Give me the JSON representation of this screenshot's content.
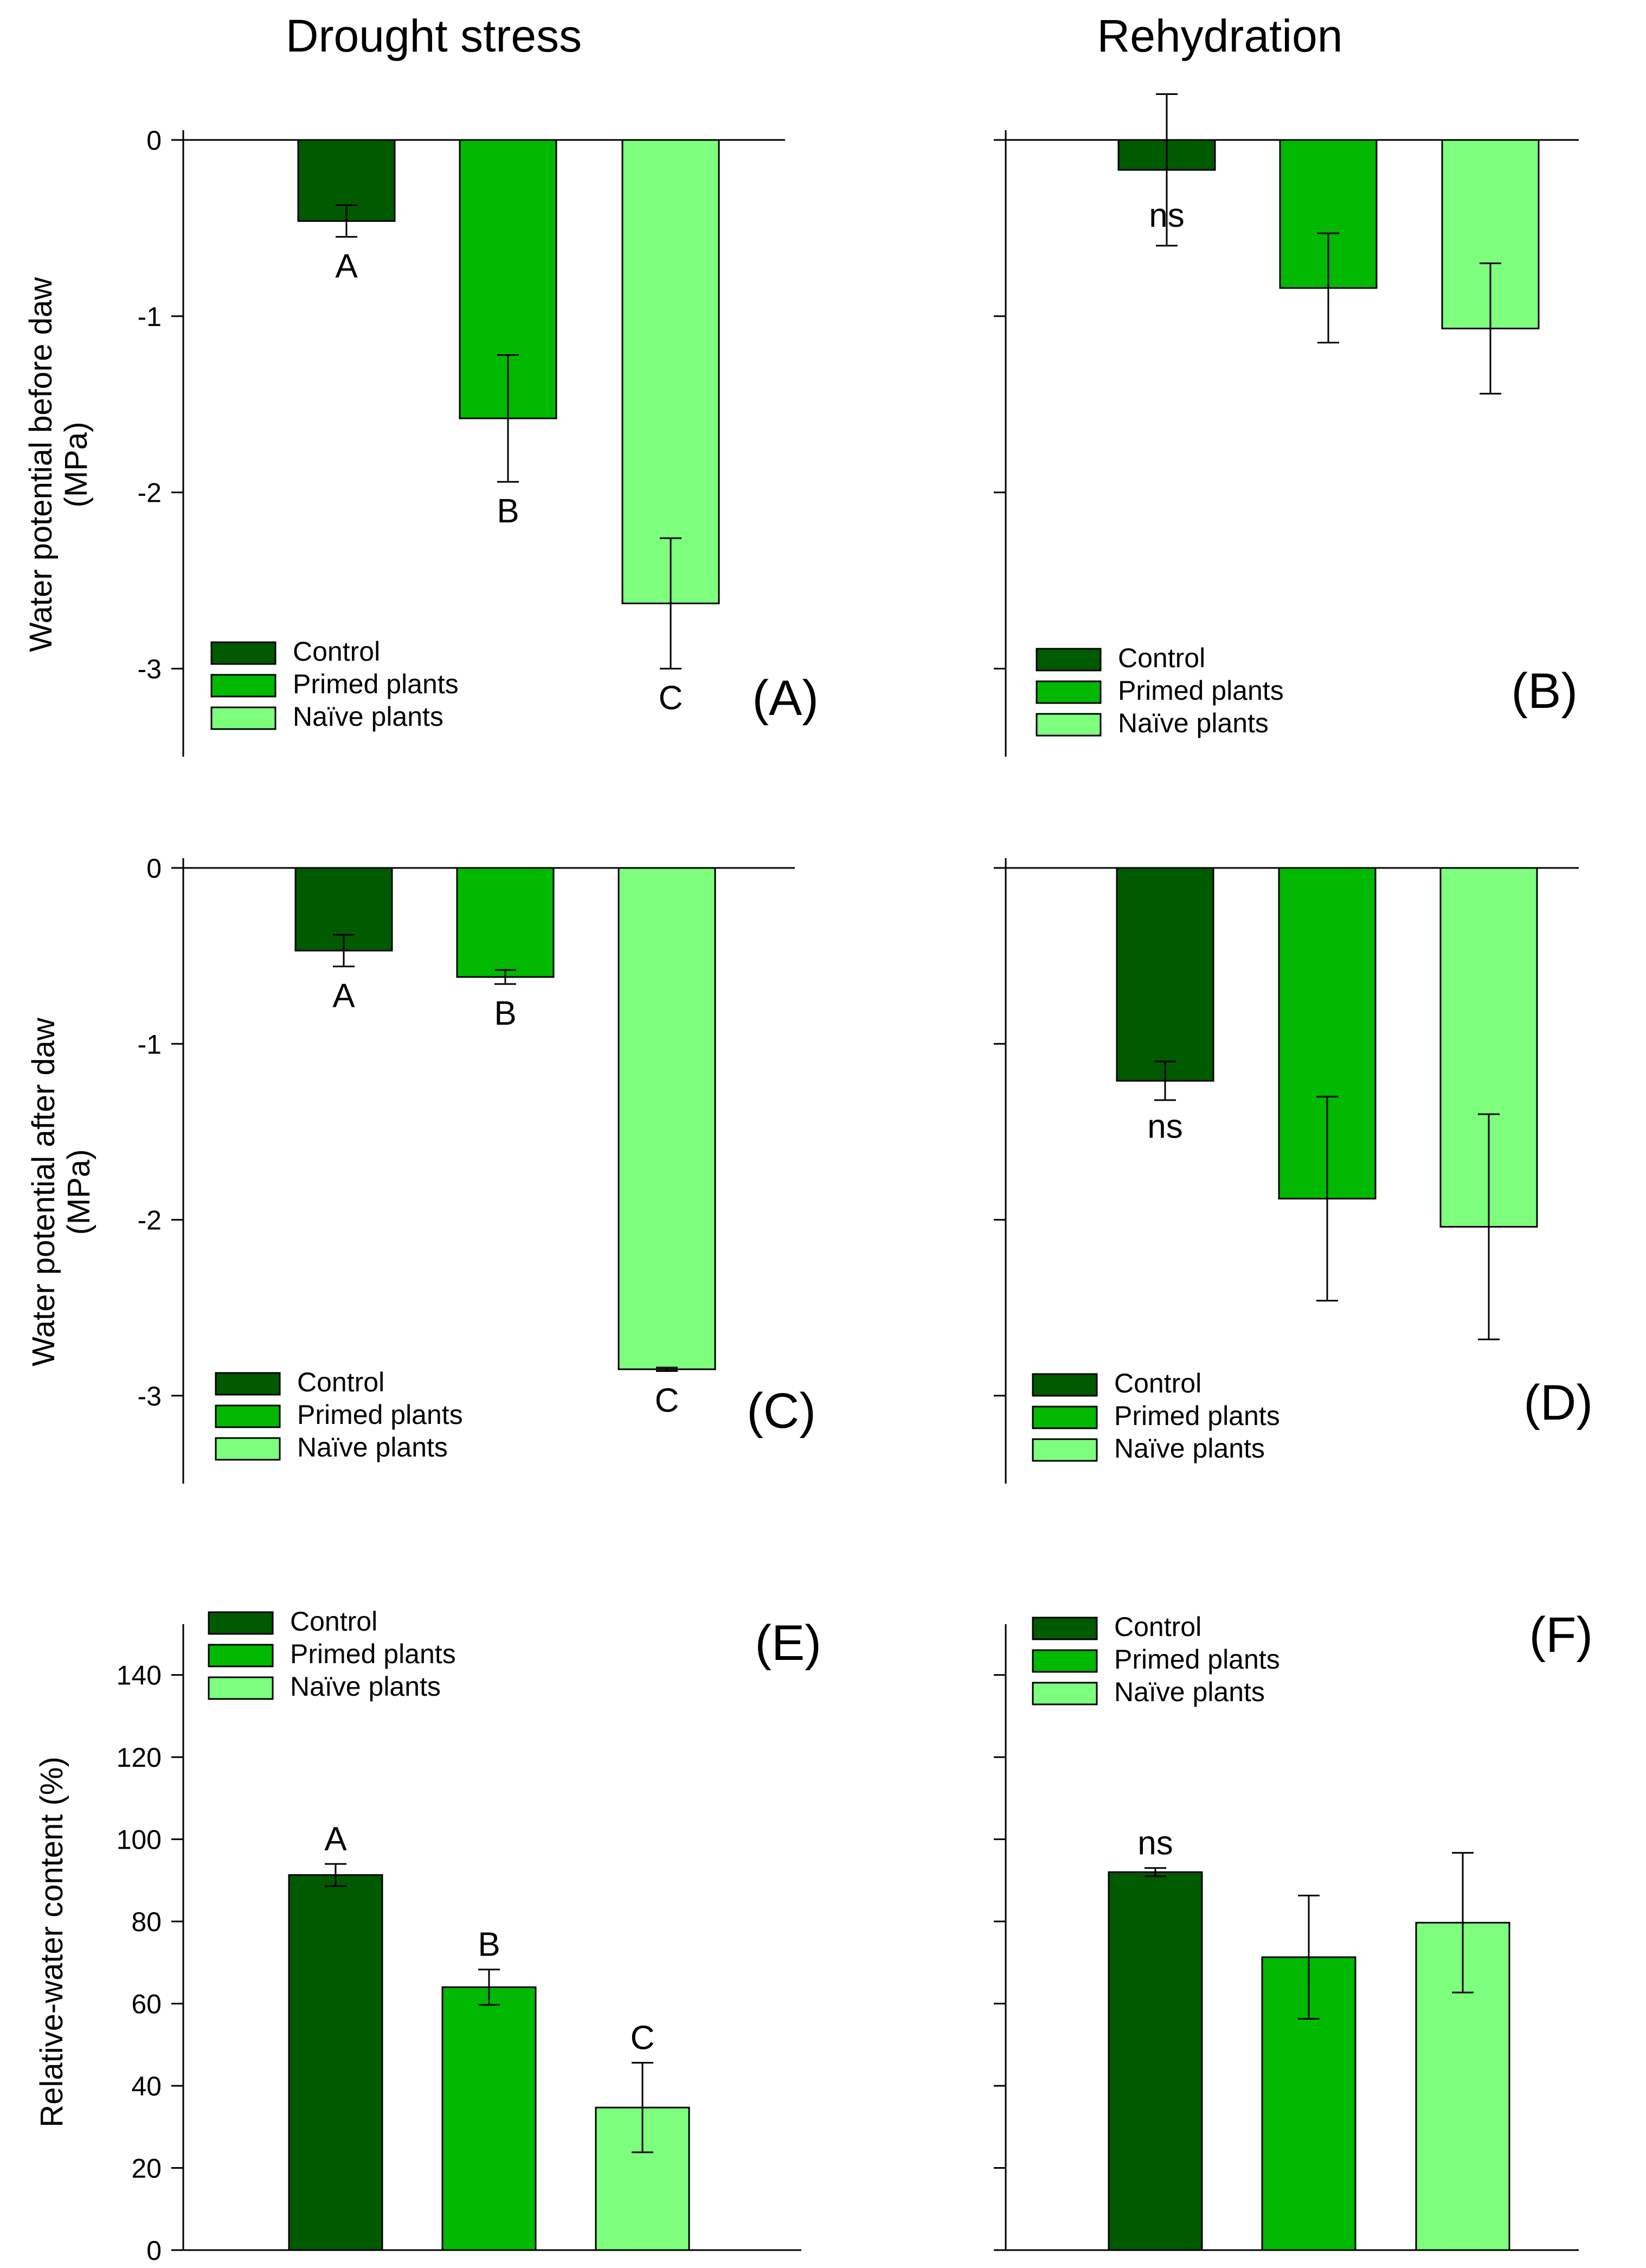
{
  "columns": [
    "Drought stress",
    "Rehydration"
  ],
  "colors": {
    "control": "#005a00",
    "primed": "#00b900",
    "naive": "#7dff7d",
    "axis": "#000000"
  },
  "chart_data": [
    {
      "id": "A",
      "panel_label": "(A)",
      "type": "bar",
      "categories": [
        "Control",
        "Primed plants",
        "Naïve plants"
      ],
      "values": [
        -0.46,
        -1.58,
        -2.63
      ],
      "errors": [
        0.09,
        0.36,
        0.37
      ],
      "sig_labels": [
        "A",
        "B",
        "C"
      ],
      "ylim": [
        -3.5,
        0
      ],
      "yticks": [
        0,
        -1,
        -2,
        -3
      ],
      "ylabel": [
        "Water potential before daw",
        "(MPa)"
      ],
      "legend": [
        "Control",
        "Primed plants",
        "Naïve plants"
      ],
      "legend_position": "bottom-left"
    },
    {
      "id": "B",
      "panel_label": "(B)",
      "type": "bar",
      "categories": [
        "Control",
        "Primed plants",
        "Naïve plants"
      ],
      "values": [
        -0.17,
        -0.84,
        -1.07
      ],
      "errors": [
        0.43,
        0.31,
        0.37
      ],
      "sig_labels": [
        "ns",
        "",
        ""
      ],
      "ylim": [
        -3.5,
        0
      ],
      "yticks": [
        0,
        -1,
        -2,
        -3
      ],
      "ylabel": [],
      "legend": [
        "Control",
        "Primed plants",
        "Naïve plants"
      ],
      "legend_position": "bottom-left"
    },
    {
      "id": "C",
      "panel_label": "(C)",
      "type": "bar",
      "categories": [
        "Control",
        "Primed plants",
        "Naïve plants"
      ],
      "values": [
        -0.47,
        -0.62,
        -2.85
      ],
      "errors": [
        0.09,
        0.04,
        0.01
      ],
      "sig_labels": [
        "A",
        "B",
        "C"
      ],
      "ylim": [
        -3.5,
        0
      ],
      "yticks": [
        0,
        -1,
        -2,
        -3
      ],
      "ylabel": [
        "Water potential after daw",
        "(MPa)"
      ],
      "legend": [
        "Control",
        "Primed plants",
        "Naïve plants"
      ],
      "legend_position": "bottom-left"
    },
    {
      "id": "D",
      "panel_label": "(D)",
      "type": "bar",
      "categories": [
        "Control",
        "Primed plants",
        "Naïve plants"
      ],
      "values": [
        -1.21,
        -1.88,
        -2.04
      ],
      "errors": [
        0.11,
        0.58,
        0.64
      ],
      "sig_labels": [
        "ns",
        "",
        ""
      ],
      "ylim": [
        -3.5,
        0
      ],
      "yticks": [
        0,
        -1,
        -2,
        -3
      ],
      "ylabel": [],
      "legend": [
        "Control",
        "Primed plants",
        "Naïve plants"
      ],
      "legend_position": "bottom-left"
    },
    {
      "id": "E",
      "panel_label": "(E)",
      "type": "bar",
      "categories": [
        "Control",
        "Primed plants",
        "Naïve plants"
      ],
      "values": [
        91.3,
        64.0,
        34.7
      ],
      "errors": [
        2.7,
        4.3,
        10.9
      ],
      "sig_labels": [
        "A",
        "B",
        "C"
      ],
      "ylim": [
        0,
        150
      ],
      "yticks": [
        0,
        20,
        40,
        60,
        80,
        100,
        120,
        140
      ],
      "ylabel": [
        "Relative-water content (%)"
      ],
      "legend": [
        "Control",
        "Primed plants",
        "Naïve plants"
      ],
      "legend_position": "top-left"
    },
    {
      "id": "F",
      "panel_label": "(F)",
      "type": "bar",
      "categories": [
        "Control",
        "Primed plants",
        "Naïve plants"
      ],
      "values": [
        92.0,
        71.3,
        79.7
      ],
      "errors": [
        1.0,
        15.0,
        17.0
      ],
      "sig_labels": [
        "ns",
        "",
        ""
      ],
      "ylim": [
        0,
        150
      ],
      "yticks": [
        0,
        20,
        40,
        60,
        80,
        100,
        120,
        140
      ],
      "ylabel": [],
      "legend": [
        "Control",
        "Primed plants",
        "Naïve plants"
      ],
      "legend_position": "top-left"
    }
  ]
}
